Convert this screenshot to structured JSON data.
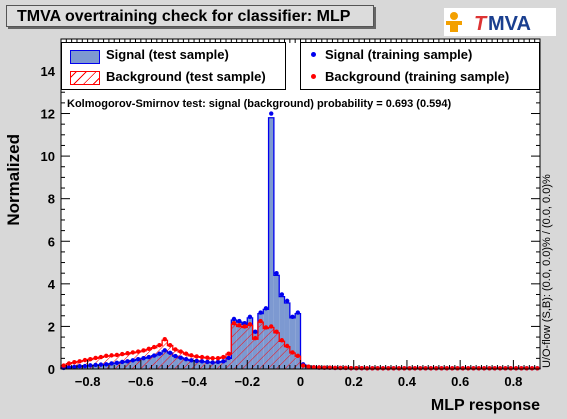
{
  "title": "TMVA overtraining check for classifier: MLP",
  "logo_text": "TMVA",
  "ylabel": "Normalized",
  "xlabel": "MLP response",
  "ks_text": "Kolmogorov-Smirnov test: signal (background) probability = 0.693 (0.594)",
  "overflow_text": "U/O-flow (S,B): (0.0, 0.0)% / (0.0, 0.0)%",
  "legend": {
    "sig_test": "Signal (test sample)",
    "bkg_test": "Background (test sample)",
    "sig_train": "Signal (training sample)",
    "bkg_train": "Background (training sample)"
  },
  "colors": {
    "signal": "#0000ee",
    "signal_fill": "#7d99d1",
    "background": "#ff0000",
    "frame_bg": "#ffffff"
  },
  "chart_data": {
    "type": "bar",
    "xlim": [
      -0.9,
      0.9
    ],
    "ylim": [
      0,
      15.5
    ],
    "xticks": [
      -0.8,
      -0.6,
      -0.4,
      -0.2,
      0,
      0.2,
      0.4,
      0.6,
      0.8
    ],
    "xtick_labels": [
      "−0.8",
      "−0.6",
      "−0.4",
      "−0.2",
      "0",
      "0.2",
      "0.4",
      "0.6",
      "0.8"
    ],
    "yticks": [
      0,
      2,
      4,
      6,
      8,
      10,
      12,
      14
    ],
    "bin_width": 0.02,
    "x_start": -0.9,
    "series": [
      {
        "name": "Signal (test sample)",
        "values": [
          0.05,
          0.08,
          0.1,
          0.12,
          0.14,
          0.16,
          0.18,
          0.2,
          0.22,
          0.25,
          0.28,
          0.32,
          0.36,
          0.4,
          0.45,
          0.5,
          0.55,
          0.62,
          0.7,
          0.85,
          0.75,
          0.6,
          0.52,
          0.45,
          0.4,
          0.38,
          0.35,
          0.33,
          0.3,
          0.32,
          0.35,
          0.5,
          2.3,
          2.2,
          2.1,
          2.4,
          1.7,
          2.6,
          2.8,
          11.8,
          4.4,
          3.4,
          3.1,
          2.4,
          2.6,
          0.2,
          0.1,
          0.08,
          0.07,
          0.06,
          0.06,
          0.05,
          0.05,
          0.05,
          0.04,
          0.04,
          0.04,
          0.03,
          0.03,
          0.03,
          0.03,
          0.03,
          0.03,
          0.03,
          0.03,
          0.03,
          0.03,
          0.03,
          0.03,
          0.03,
          0.03,
          0.03,
          0.03,
          0.03,
          0.03,
          0.03,
          0.03,
          0.03,
          0.03,
          0.03,
          0.03,
          0.03,
          0.03,
          0.03,
          0.03,
          0.03,
          0.03,
          0.03,
          0.03,
          0.03
        ]
      },
      {
        "name": "Background (test sample)",
        "values": [
          0.15,
          0.25,
          0.3,
          0.35,
          0.4,
          0.45,
          0.5,
          0.55,
          0.6,
          0.62,
          0.65,
          0.68,
          0.72,
          0.76,
          0.8,
          0.85,
          0.92,
          1.0,
          1.1,
          1.35,
          1.1,
          0.9,
          0.8,
          0.7,
          0.62,
          0.58,
          0.55,
          0.52,
          0.5,
          0.5,
          0.55,
          0.7,
          2.1,
          2.0,
          1.95,
          2.05,
          1.4,
          2.2,
          1.9,
          1.95,
          1.7,
          1.3,
          1.05,
          0.75,
          0.6,
          0.15,
          0.1,
          0.08,
          0.07,
          0.06,
          0.06,
          0.05,
          0.05,
          0.05,
          0.04,
          0.04,
          0.04,
          0.03,
          0.03,
          0.03,
          0.03,
          0.03,
          0.03,
          0.03,
          0.03,
          0.03,
          0.03,
          0.03,
          0.03,
          0.03,
          0.03,
          0.03,
          0.03,
          0.03,
          0.03,
          0.03,
          0.03,
          0.03,
          0.03,
          0.03,
          0.03,
          0.03,
          0.03,
          0.03,
          0.03,
          0.03,
          0.03,
          0.03,
          0.03,
          0.03
        ]
      },
      {
        "name": "Signal (training sample)",
        "values": [
          0.05,
          0.08,
          0.1,
          0.13,
          0.14,
          0.17,
          0.19,
          0.21,
          0.22,
          0.26,
          0.29,
          0.33,
          0.36,
          0.41,
          0.46,
          0.51,
          0.56,
          0.63,
          0.72,
          0.88,
          0.76,
          0.61,
          0.53,
          0.46,
          0.41,
          0.38,
          0.36,
          0.33,
          0.31,
          0.33,
          0.36,
          0.52,
          2.35,
          2.25,
          2.15,
          2.45,
          1.75,
          2.65,
          2.85,
          12.0,
          4.5,
          3.5,
          3.2,
          2.45,
          2.65,
          0.22,
          0.11,
          0.08,
          0.07,
          0.06,
          0.06,
          0.05,
          0.05,
          0.05,
          0.04,
          0.04,
          0.04,
          0.03,
          0.03,
          0.03,
          0.03,
          0.03,
          0.03,
          0.03,
          0.03,
          0.03,
          0.03,
          0.03,
          0.03,
          0.03,
          0.03,
          0.03,
          0.03,
          0.03,
          0.03,
          0.03,
          0.03,
          0.03,
          0.03,
          0.03,
          0.03,
          0.03,
          0.03,
          0.03,
          0.03,
          0.03,
          0.03,
          0.03,
          0.03,
          0.03
        ]
      },
      {
        "name": "Background (training sample)",
        "values": [
          0.16,
          0.26,
          0.32,
          0.36,
          0.42,
          0.46,
          0.52,
          0.56,
          0.62,
          0.64,
          0.66,
          0.7,
          0.74,
          0.78,
          0.82,
          0.87,
          0.95,
          1.03,
          1.12,
          1.4,
          1.12,
          0.92,
          0.82,
          0.72,
          0.64,
          0.59,
          0.56,
          0.53,
          0.51,
          0.51,
          0.56,
          0.72,
          2.15,
          2.05,
          2.0,
          2.1,
          1.45,
          2.25,
          1.95,
          2.0,
          1.75,
          1.35,
          1.08,
          0.78,
          0.62,
          0.16,
          0.11,
          0.08,
          0.07,
          0.06,
          0.06,
          0.05,
          0.05,
          0.05,
          0.04,
          0.04,
          0.04,
          0.03,
          0.03,
          0.03,
          0.03,
          0.03,
          0.03,
          0.03,
          0.03,
          0.03,
          0.03,
          0.03,
          0.03,
          0.03,
          0.03,
          0.03,
          0.03,
          0.03,
          0.03,
          0.03,
          0.03,
          0.03,
          0.03,
          0.03,
          0.03,
          0.03,
          0.03,
          0.03,
          0.03,
          0.03,
          0.03,
          0.03,
          0.03,
          0.03
        ]
      }
    ],
    "grid": false,
    "legend_position": "top"
  }
}
